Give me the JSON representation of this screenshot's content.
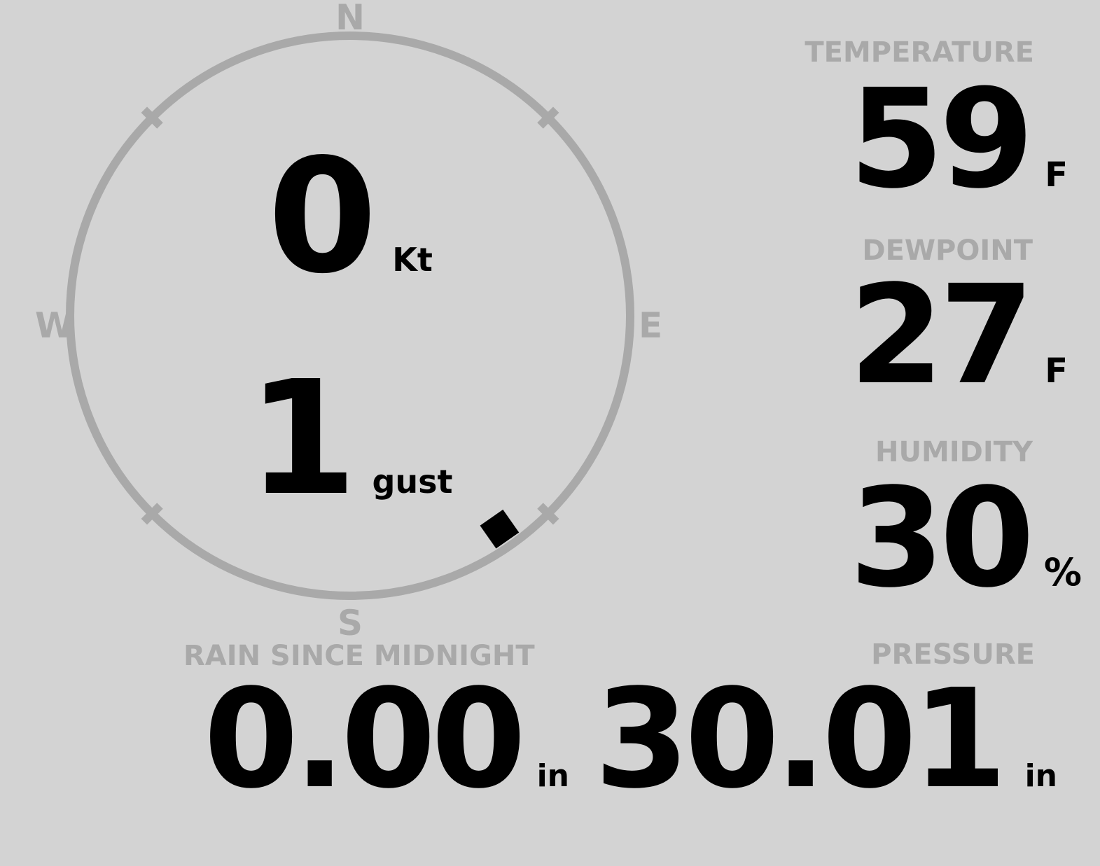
{
  "colors": {
    "background": "#d3d3d3",
    "muted_gray": "#a9a9a9",
    "value_black": "#000000"
  },
  "wind_gauge": {
    "cardinals": {
      "north": "N",
      "east": "E",
      "south": "S",
      "west": "W"
    },
    "speed": {
      "value": "0",
      "unit": "Kt"
    },
    "gust": {
      "value": "1",
      "unit": "gust"
    },
    "direction_degrees": 145
  },
  "readouts": {
    "temperature": {
      "label": "TEMPERATURE",
      "value": "59",
      "unit": "F"
    },
    "dewpoint": {
      "label": "DEWPOINT",
      "value": "27",
      "unit": "F"
    },
    "humidity": {
      "label": "HUMIDITY",
      "value": "30",
      "unit": "%"
    },
    "rain": {
      "label": "RAIN SINCE MIDNIGHT",
      "value": "0.00",
      "unit": "in"
    },
    "pressure": {
      "label": "PRESSURE",
      "value": "30.01",
      "unit": "in"
    }
  }
}
